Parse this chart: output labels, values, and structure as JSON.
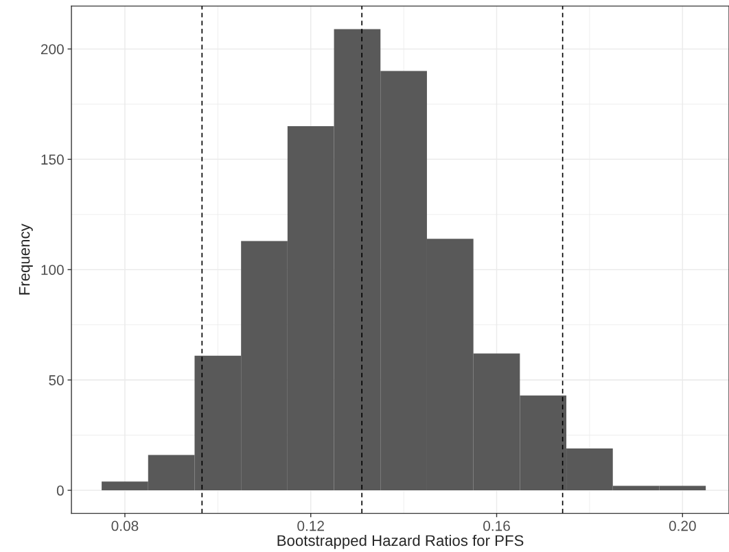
{
  "chart_data": {
    "type": "histogram",
    "xlabel": "Bootstrapped Hazard Ratios for PFS",
    "ylabel": "Frequency",
    "bins": [
      0.075,
      0.085,
      0.095,
      0.105,
      0.115,
      0.125,
      0.135,
      0.145,
      0.155,
      0.165,
      0.175,
      0.185,
      0.195,
      0.205
    ],
    "values": [
      4,
      16,
      61,
      113,
      165,
      209,
      190,
      114,
      62,
      43,
      19,
      2,
      2
    ],
    "color": "#595959",
    "xlim": [
      0.0685,
      0.21
    ],
    "ylim": [
      -10.45,
      219.45
    ],
    "xticks": [
      {
        "value": 0.08,
        "label": "0.08"
      },
      {
        "value": 0.12,
        "label": "0.12"
      },
      {
        "value": 0.16,
        "label": "0.16"
      },
      {
        "value": 0.2,
        "label": "0.20"
      }
    ],
    "yticks": [
      0,
      50,
      100,
      150,
      200
    ],
    "grid": true,
    "ref_lines": [
      {
        "axis": "x",
        "value": 0.0966,
        "line_style": "dashed",
        "color": "#000000"
      },
      {
        "axis": "x",
        "value": 0.131,
        "line_style": "dashed",
        "color": "#000000"
      },
      {
        "axis": "x",
        "value": 0.1742,
        "line_style": "dashed",
        "color": "#000000"
      }
    ]
  }
}
